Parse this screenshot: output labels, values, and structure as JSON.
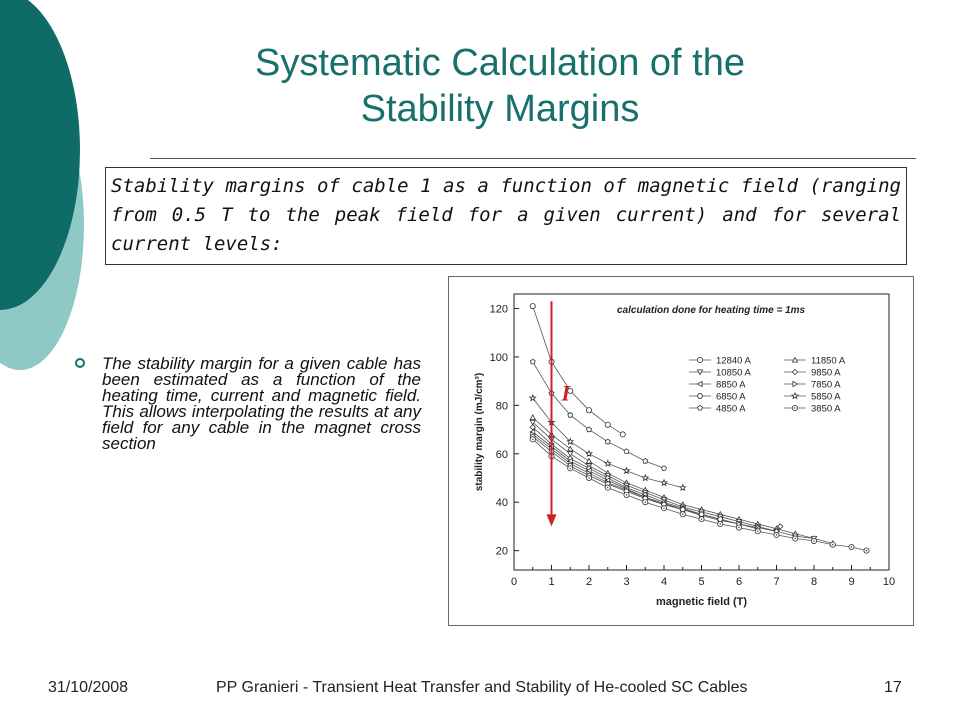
{
  "slide": {
    "title_line1": "Systematic Calculation of the",
    "title_line2": "Stability Margins",
    "intro": "Stability margins of cable 1 as a function of magnetic field (ranging from 0.5 T to the peak field for a given current) and for several current levels:",
    "bullet": "The stability margin for a given cable has been estimated as a function of the heating time, current and magnetic field. This allows interpolating the results at any field for any cable in the magnet cross section",
    "accent_color": "#17706b"
  },
  "footer": {
    "date": "31/10/2008",
    "center": "PP Granieri - Transient Heat Transfer and Stability of He-cooled SC Cables",
    "page": "17"
  },
  "chart_data": {
    "type": "line",
    "annotation": "calculation done for heating time = 1ms",
    "arrow_label": "I",
    "arrow_color": "#cc2222",
    "xlabel": "magnetic field (T)",
    "ylabel": "stability margin (mJ/cm³)",
    "xlim": [
      0,
      10
    ],
    "ylim": [
      12,
      126
    ],
    "xticks": [
      0,
      1,
      2,
      3,
      4,
      5,
      6,
      7,
      8,
      9,
      10
    ],
    "yticks": [
      20,
      40,
      60,
      80,
      100,
      120
    ],
    "grid": false,
    "legend_position": "right",
    "series": [
      {
        "name": "12840 A",
        "marker": "circle",
        "x": [
          0.5,
          1,
          1.5,
          2,
          2.5,
          2.9
        ],
        "y": [
          121,
          98,
          86,
          78,
          72,
          68
        ]
      },
      {
        "name": "11850 A",
        "marker": "triangle-up",
        "x": [
          0.5,
          1,
          1.5,
          2,
          2.5,
          3,
          3.5,
          4,
          4.5,
          5,
          5.5,
          6,
          6.5,
          7,
          7.5,
          8,
          8.5
        ],
        "y": [
          75,
          68,
          62,
          57,
          52,
          48,
          45,
          42,
          39,
          37,
          35,
          33,
          31,
          29,
          27,
          25,
          23
        ]
      },
      {
        "name": "10850 A",
        "marker": "triangle-down",
        "x": [
          0.5,
          1,
          1.5,
          2,
          2.5,
          3,
          3.5,
          4,
          4.5,
          5,
          5.5,
          6,
          6.5,
          7,
          7.5,
          8
        ],
        "y": [
          73,
          66,
          60,
          55,
          51,
          47,
          44,
          41,
          38,
          36,
          34,
          32,
          30,
          28,
          26,
          25
        ]
      },
      {
        "name": "9850 A",
        "marker": "diamond",
        "x": [
          0.5,
          1,
          1.5,
          2,
          2.5,
          3,
          3.5,
          4,
          4.5,
          5,
          5.5,
          6,
          6.5,
          7,
          7.1
        ],
        "y": [
          71,
          64,
          58,
          54,
          50,
          46,
          43,
          40,
          37.5,
          35,
          33,
          31,
          29.5,
          28,
          30
        ]
      },
      {
        "name": "8850 A",
        "marker": "triangle-left",
        "x": [
          0.5,
          1,
          1.5,
          2,
          2.5,
          3,
          3.5,
          4,
          4.5,
          5,
          5.5,
          6,
          6.5
        ],
        "y": [
          69,
          63,
          57,
          53,
          49,
          45.5,
          42,
          39.5,
          37,
          34.5,
          32.5,
          31,
          29
        ]
      },
      {
        "name": "7850 A",
        "marker": "triangle-right",
        "x": [
          0.5,
          1,
          1.5,
          2,
          2.5,
          3,
          3.5,
          4,
          4.5,
          5,
          5.5,
          6
        ],
        "y": [
          68,
          62,
          56,
          52,
          48,
          45,
          42,
          39,
          37,
          35,
          33,
          31
        ]
      },
      {
        "name": "6850 A",
        "marker": "hexagon",
        "x": [
          0.5,
          1,
          1.5,
          2,
          2.5,
          3,
          3.5,
          4,
          4.5,
          5,
          5.5
        ],
        "y": [
          67,
          61,
          55,
          51,
          47.5,
          44.5,
          41.5,
          39,
          37,
          35,
          33
        ]
      },
      {
        "name": "5850 A",
        "marker": "star",
        "x": [
          0.5,
          1,
          1.5,
          2,
          2.5,
          3,
          3.5,
          4,
          4.5
        ],
        "y": [
          83,
          73,
          65,
          60,
          56,
          53,
          50,
          48,
          46
        ]
      },
      {
        "name": "4850 A",
        "marker": "pentagon",
        "x": [
          0.5,
          1,
          1.5,
          2,
          2.5,
          3,
          3.5,
          4
        ],
        "y": [
          98,
          85,
          76,
          70,
          65,
          61,
          57,
          54
        ]
      },
      {
        "name": "3850 A",
        "marker": "circle-dot",
        "x": [
          0.5,
          1,
          1.5,
          2,
          2.5,
          3,
          3.5,
          4,
          4.5,
          5,
          5.5,
          6,
          6.5,
          7,
          7.5,
          8,
          8.5,
          9,
          9.4
        ],
        "y": [
          66,
          59,
          54,
          50,
          46,
          43,
          40,
          37.5,
          35,
          33,
          31,
          29.5,
          28,
          26.5,
          25,
          24,
          22.5,
          21.5,
          20
        ]
      }
    ]
  }
}
